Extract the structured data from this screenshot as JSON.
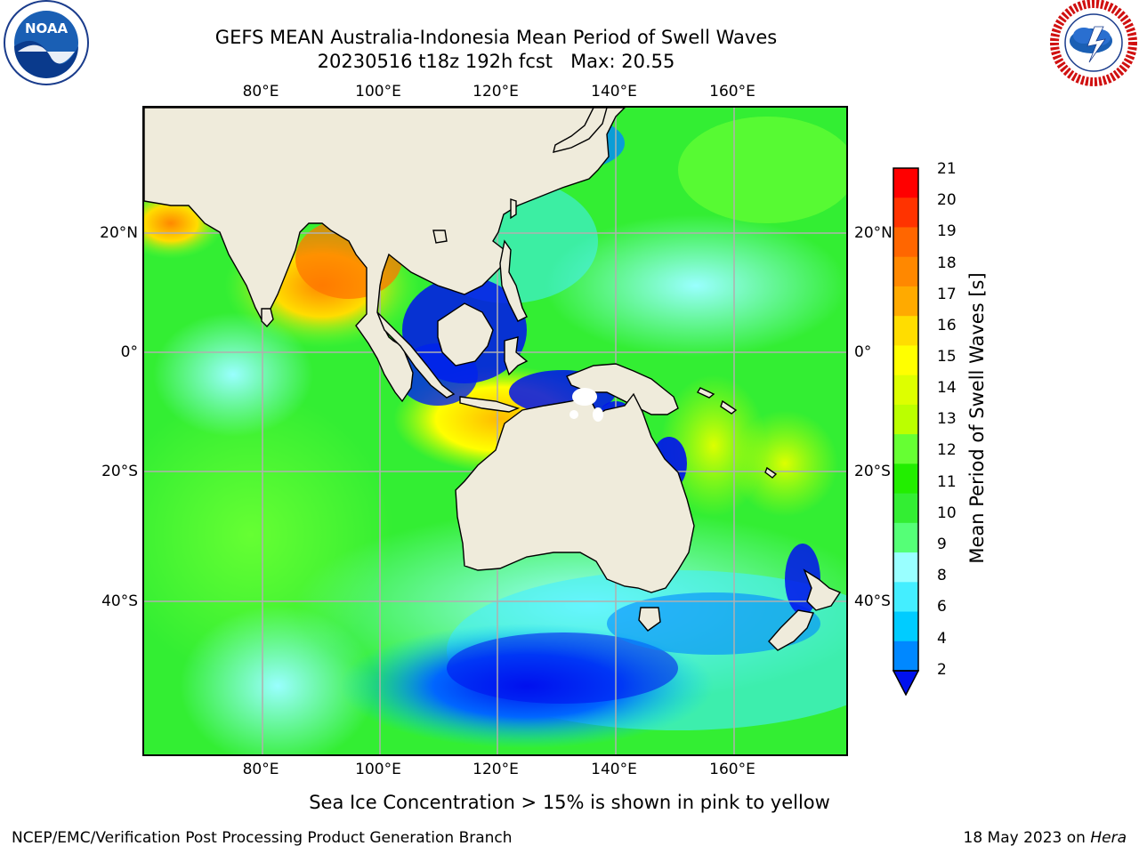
{
  "header": {
    "title_line1": "GEFS MEAN Australia-Indonesia Mean Period of Swell Waves",
    "title_line2": "20230516 t18z 192h fcst   Max: 20.55"
  },
  "logos": {
    "noaa": {
      "text": "NOAA",
      "ring_text": "NATIONAL OCEANIC AND ATMOSPHERIC ADMINISTRATION · U.S. DEPARTMENT OF COMMERCE"
    },
    "nws": {
      "ring_text": "NATIONAL WEATHER SERVICE"
    }
  },
  "map": {
    "lon_ticks": [
      "80°E",
      "100°E",
      "120°E",
      "140°E",
      "160°E"
    ],
    "lat_ticks_left": [
      "20°N",
      "0°",
      "20°S",
      "40°S"
    ],
    "lat_ticks_right": [
      "20°N",
      "0°",
      "20°S",
      "40°S"
    ],
    "extent": {
      "lon": [
        60,
        180
      ],
      "lat": [
        -60,
        40
      ]
    },
    "colors": {
      "land": "#efebdb",
      "grid": "#b0b0b0",
      "coast": "#000000"
    }
  },
  "colorbar": {
    "label": "Mean Period of Swell Waves [s]",
    "ticks": [
      "21",
      "20",
      "19",
      "18",
      "17",
      "16",
      "15",
      "14",
      "13",
      "12",
      "11",
      "10",
      "9",
      "8",
      "6",
      "4",
      "2"
    ],
    "colors": [
      "#ff0000",
      "#ff3300",
      "#ff6600",
      "#ff8800",
      "#ffaa00",
      "#ffdd00",
      "#ffff00",
      "#ddff00",
      "#bbff00",
      "#66ff33",
      "#22ee00",
      "#33ee33",
      "#55ff77",
      "#99ffff",
      "#44eeff",
      "#00ccff",
      "#0088ff",
      "#0011ee"
    ]
  },
  "footer": {
    "note": "Sea Ice Concentration > 15% is shown in pink to yellow",
    "org": "NCEP/EMC/Verification Post Processing Product Generation Branch",
    "date": "18 May 2023 on",
    "host": "Hera"
  }
}
